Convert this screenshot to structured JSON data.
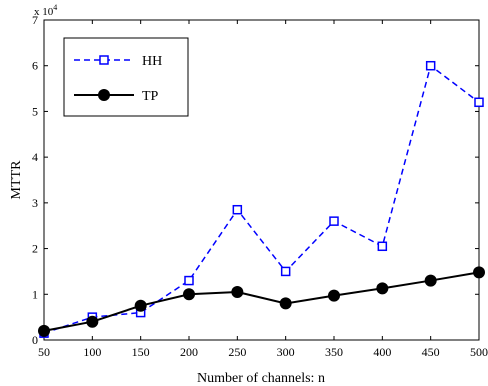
{
  "chart_data": {
    "type": "line",
    "title": "",
    "xlabel": "Number of channels: n",
    "ylabel": "MTTR",
    "y_multiplier": "x 10",
    "y_exponent": "4",
    "x": [
      50,
      100,
      150,
      200,
      250,
      300,
      350,
      400,
      450,
      500
    ],
    "x_ticks": [
      "50",
      "100",
      "150",
      "200",
      "250",
      "300",
      "350",
      "400",
      "450",
      "500"
    ],
    "y_ticks": [
      "0",
      "1",
      "2",
      "3",
      "4",
      "5",
      "6",
      "7"
    ],
    "xlim": [
      50,
      500
    ],
    "ylim": [
      0,
      70000
    ],
    "grid": false,
    "legend_position": "top-left",
    "series": [
      {
        "name": "HH",
        "color": "#0000ff",
        "line_style": "dashed",
        "marker": "square-open",
        "values": [
          1500,
          5000,
          6000,
          13000,
          28500,
          15000,
          26000,
          20500,
          60000,
          52000
        ]
      },
      {
        "name": "TP",
        "color": "#000000",
        "line_style": "solid",
        "marker": "circle-filled",
        "values": [
          2000,
          4000,
          7500,
          10000,
          10500,
          8000,
          9700,
          11300,
          13000,
          14800
        ]
      }
    ]
  }
}
